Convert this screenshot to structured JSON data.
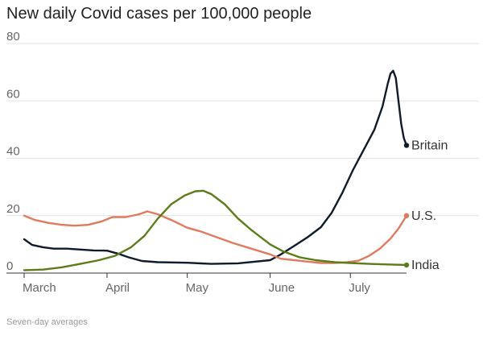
{
  "chart_data": {
    "type": "line",
    "title": "New daily Covid cases per 100,000 people",
    "note": "Seven-day averages",
    "xlabel": "",
    "ylabel": "",
    "x_tick_labels": [
      "March",
      "April",
      "May",
      "June",
      "July"
    ],
    "y_ticks": [
      0,
      20,
      40,
      60,
      80
    ],
    "ylim": [
      0,
      80
    ],
    "xlim": [
      "2021-03-01",
      "2021-07-22"
    ],
    "grid": true,
    "legend": "inline-right",
    "series": [
      {
        "name": "Britain",
        "color": "#0d1b2a",
        "points": [
          [
            "2021-03-01",
            11.8
          ],
          [
            "2021-03-04",
            9.8
          ],
          [
            "2021-03-08",
            9.0
          ],
          [
            "2021-03-12",
            8.5
          ],
          [
            "2021-03-17",
            8.5
          ],
          [
            "2021-03-22",
            8.2
          ],
          [
            "2021-03-27",
            7.9
          ],
          [
            "2021-04-01",
            7.8
          ],
          [
            "2021-04-05",
            6.8
          ],
          [
            "2021-04-09",
            5.5
          ],
          [
            "2021-04-14",
            4.2
          ],
          [
            "2021-04-20",
            3.8
          ],
          [
            "2021-05-01",
            3.6
          ],
          [
            "2021-05-10",
            3.2
          ],
          [
            "2021-05-20",
            3.4
          ],
          [
            "2021-06-01",
            4.5
          ],
          [
            "2021-06-05",
            6.5
          ],
          [
            "2021-06-10",
            9.5
          ],
          [
            "2021-06-15",
            12.5
          ],
          [
            "2021-06-20",
            16.0
          ],
          [
            "2021-06-24",
            21.0
          ],
          [
            "2021-06-28",
            28.0
          ],
          [
            "2021-07-02",
            36.0
          ],
          [
            "2021-07-06",
            43.0
          ],
          [
            "2021-07-10",
            50.0
          ],
          [
            "2021-07-13",
            58.0
          ],
          [
            "2021-07-15",
            66.0
          ],
          [
            "2021-07-16",
            69.5
          ],
          [
            "2021-07-17",
            70.5
          ],
          [
            "2021-07-18",
            68.0
          ],
          [
            "2021-07-19",
            60.0
          ],
          [
            "2021-07-20",
            52.0
          ],
          [
            "2021-07-21",
            47.0
          ],
          [
            "2021-07-22",
            44.5
          ]
        ]
      },
      {
        "name": "U.S.",
        "color": "#e07a5f",
        "points": [
          [
            "2021-03-01",
            20.0
          ],
          [
            "2021-03-05",
            18.5
          ],
          [
            "2021-03-10",
            17.5
          ],
          [
            "2021-03-15",
            16.8
          ],
          [
            "2021-03-20",
            16.5
          ],
          [
            "2021-03-25",
            16.8
          ],
          [
            "2021-03-30",
            18.0
          ],
          [
            "2021-04-03",
            19.5
          ],
          [
            "2021-04-08",
            19.5
          ],
          [
            "2021-04-13",
            20.5
          ],
          [
            "2021-04-16",
            21.5
          ],
          [
            "2021-04-20",
            20.5
          ],
          [
            "2021-04-25",
            18.5
          ],
          [
            "2021-05-01",
            15.8
          ],
          [
            "2021-05-06",
            14.5
          ],
          [
            "2021-05-12",
            12.5
          ],
          [
            "2021-05-18",
            10.5
          ],
          [
            "2021-05-25",
            8.5
          ],
          [
            "2021-06-01",
            6.5
          ],
          [
            "2021-06-05",
            5.0
          ],
          [
            "2021-06-10",
            4.5
          ],
          [
            "2021-06-15",
            4.0
          ],
          [
            "2021-06-20",
            3.5
          ],
          [
            "2021-06-25",
            3.5
          ],
          [
            "2021-06-30",
            3.8
          ],
          [
            "2021-07-04",
            4.3
          ],
          [
            "2021-07-08",
            6.0
          ],
          [
            "2021-07-12",
            8.5
          ],
          [
            "2021-07-16",
            12.0
          ],
          [
            "2021-07-19",
            15.5
          ],
          [
            "2021-07-22",
            20.0
          ]
        ]
      },
      {
        "name": "India",
        "color": "#5a7d1a",
        "points": [
          [
            "2021-03-01",
            1.0
          ],
          [
            "2021-03-08",
            1.2
          ],
          [
            "2021-03-15",
            2.0
          ],
          [
            "2021-03-22",
            3.2
          ],
          [
            "2021-03-29",
            4.5
          ],
          [
            "2021-04-04",
            6.0
          ],
          [
            "2021-04-10",
            9.0
          ],
          [
            "2021-04-15",
            13.0
          ],
          [
            "2021-04-20",
            19.0
          ],
          [
            "2021-04-25",
            24.0
          ],
          [
            "2021-04-30",
            27.0
          ],
          [
            "2021-05-04",
            28.5
          ],
          [
            "2021-05-07",
            28.7
          ],
          [
            "2021-05-10",
            27.5
          ],
          [
            "2021-05-15",
            24.0
          ],
          [
            "2021-05-20",
            19.0
          ],
          [
            "2021-05-25",
            15.0
          ],
          [
            "2021-06-01",
            10.0
          ],
          [
            "2021-06-06",
            7.5
          ],
          [
            "2021-06-12",
            5.5
          ],
          [
            "2021-06-18",
            4.5
          ],
          [
            "2021-06-25",
            3.8
          ],
          [
            "2021-07-01",
            3.5
          ],
          [
            "2021-07-08",
            3.2
          ],
          [
            "2021-07-15",
            3.0
          ],
          [
            "2021-07-22",
            2.8
          ]
        ]
      }
    ]
  }
}
